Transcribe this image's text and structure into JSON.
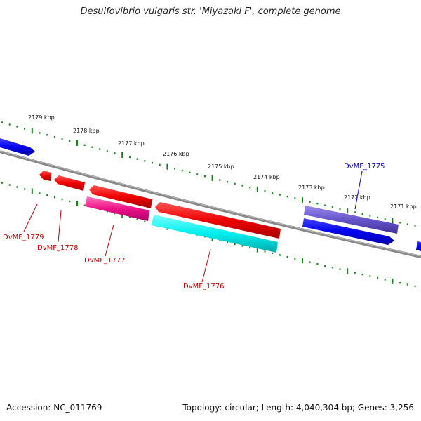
{
  "title": "Desulfovibrio vulgaris str. 'Miyazaki F', complete genome",
  "footer": {
    "accession": "Accession: NC_011769",
    "summary": "Topology: circular; Length: 4,040,304 bp; Genes: 3,256"
  },
  "tick_labels": [
    "2179 kbp",
    "2178 kbp",
    "2177 kbp",
    "2176 kbp",
    "2175 kbp",
    "2174 kbp",
    "2173 kbp",
    "2172 kbp",
    "2171 kbp"
  ],
  "genes": [
    {
      "label": "DvMF_1775",
      "color": "#0000cc",
      "strand": "forward"
    },
    {
      "label": "DvMF_1776",
      "color": "#cc0000",
      "strand": "reverse"
    },
    {
      "label": "DvMF_1777",
      "color": "#cc0000",
      "strand": "reverse"
    },
    {
      "label": "DvMF_1778",
      "color": "#cc0000",
      "strand": "reverse"
    },
    {
      "label": "DvMF_1779",
      "color": "#cc0000",
      "strand": "reverse"
    }
  ],
  "colors": {
    "forward_cds": "#0000ee",
    "reverse_cds": "#ee0000",
    "feature_cyan": "#00eeee",
    "feature_magenta": "#ee1188",
    "feature_purple": "#6655cc",
    "backbone": "#888888",
    "ticks": "#118811"
  }
}
